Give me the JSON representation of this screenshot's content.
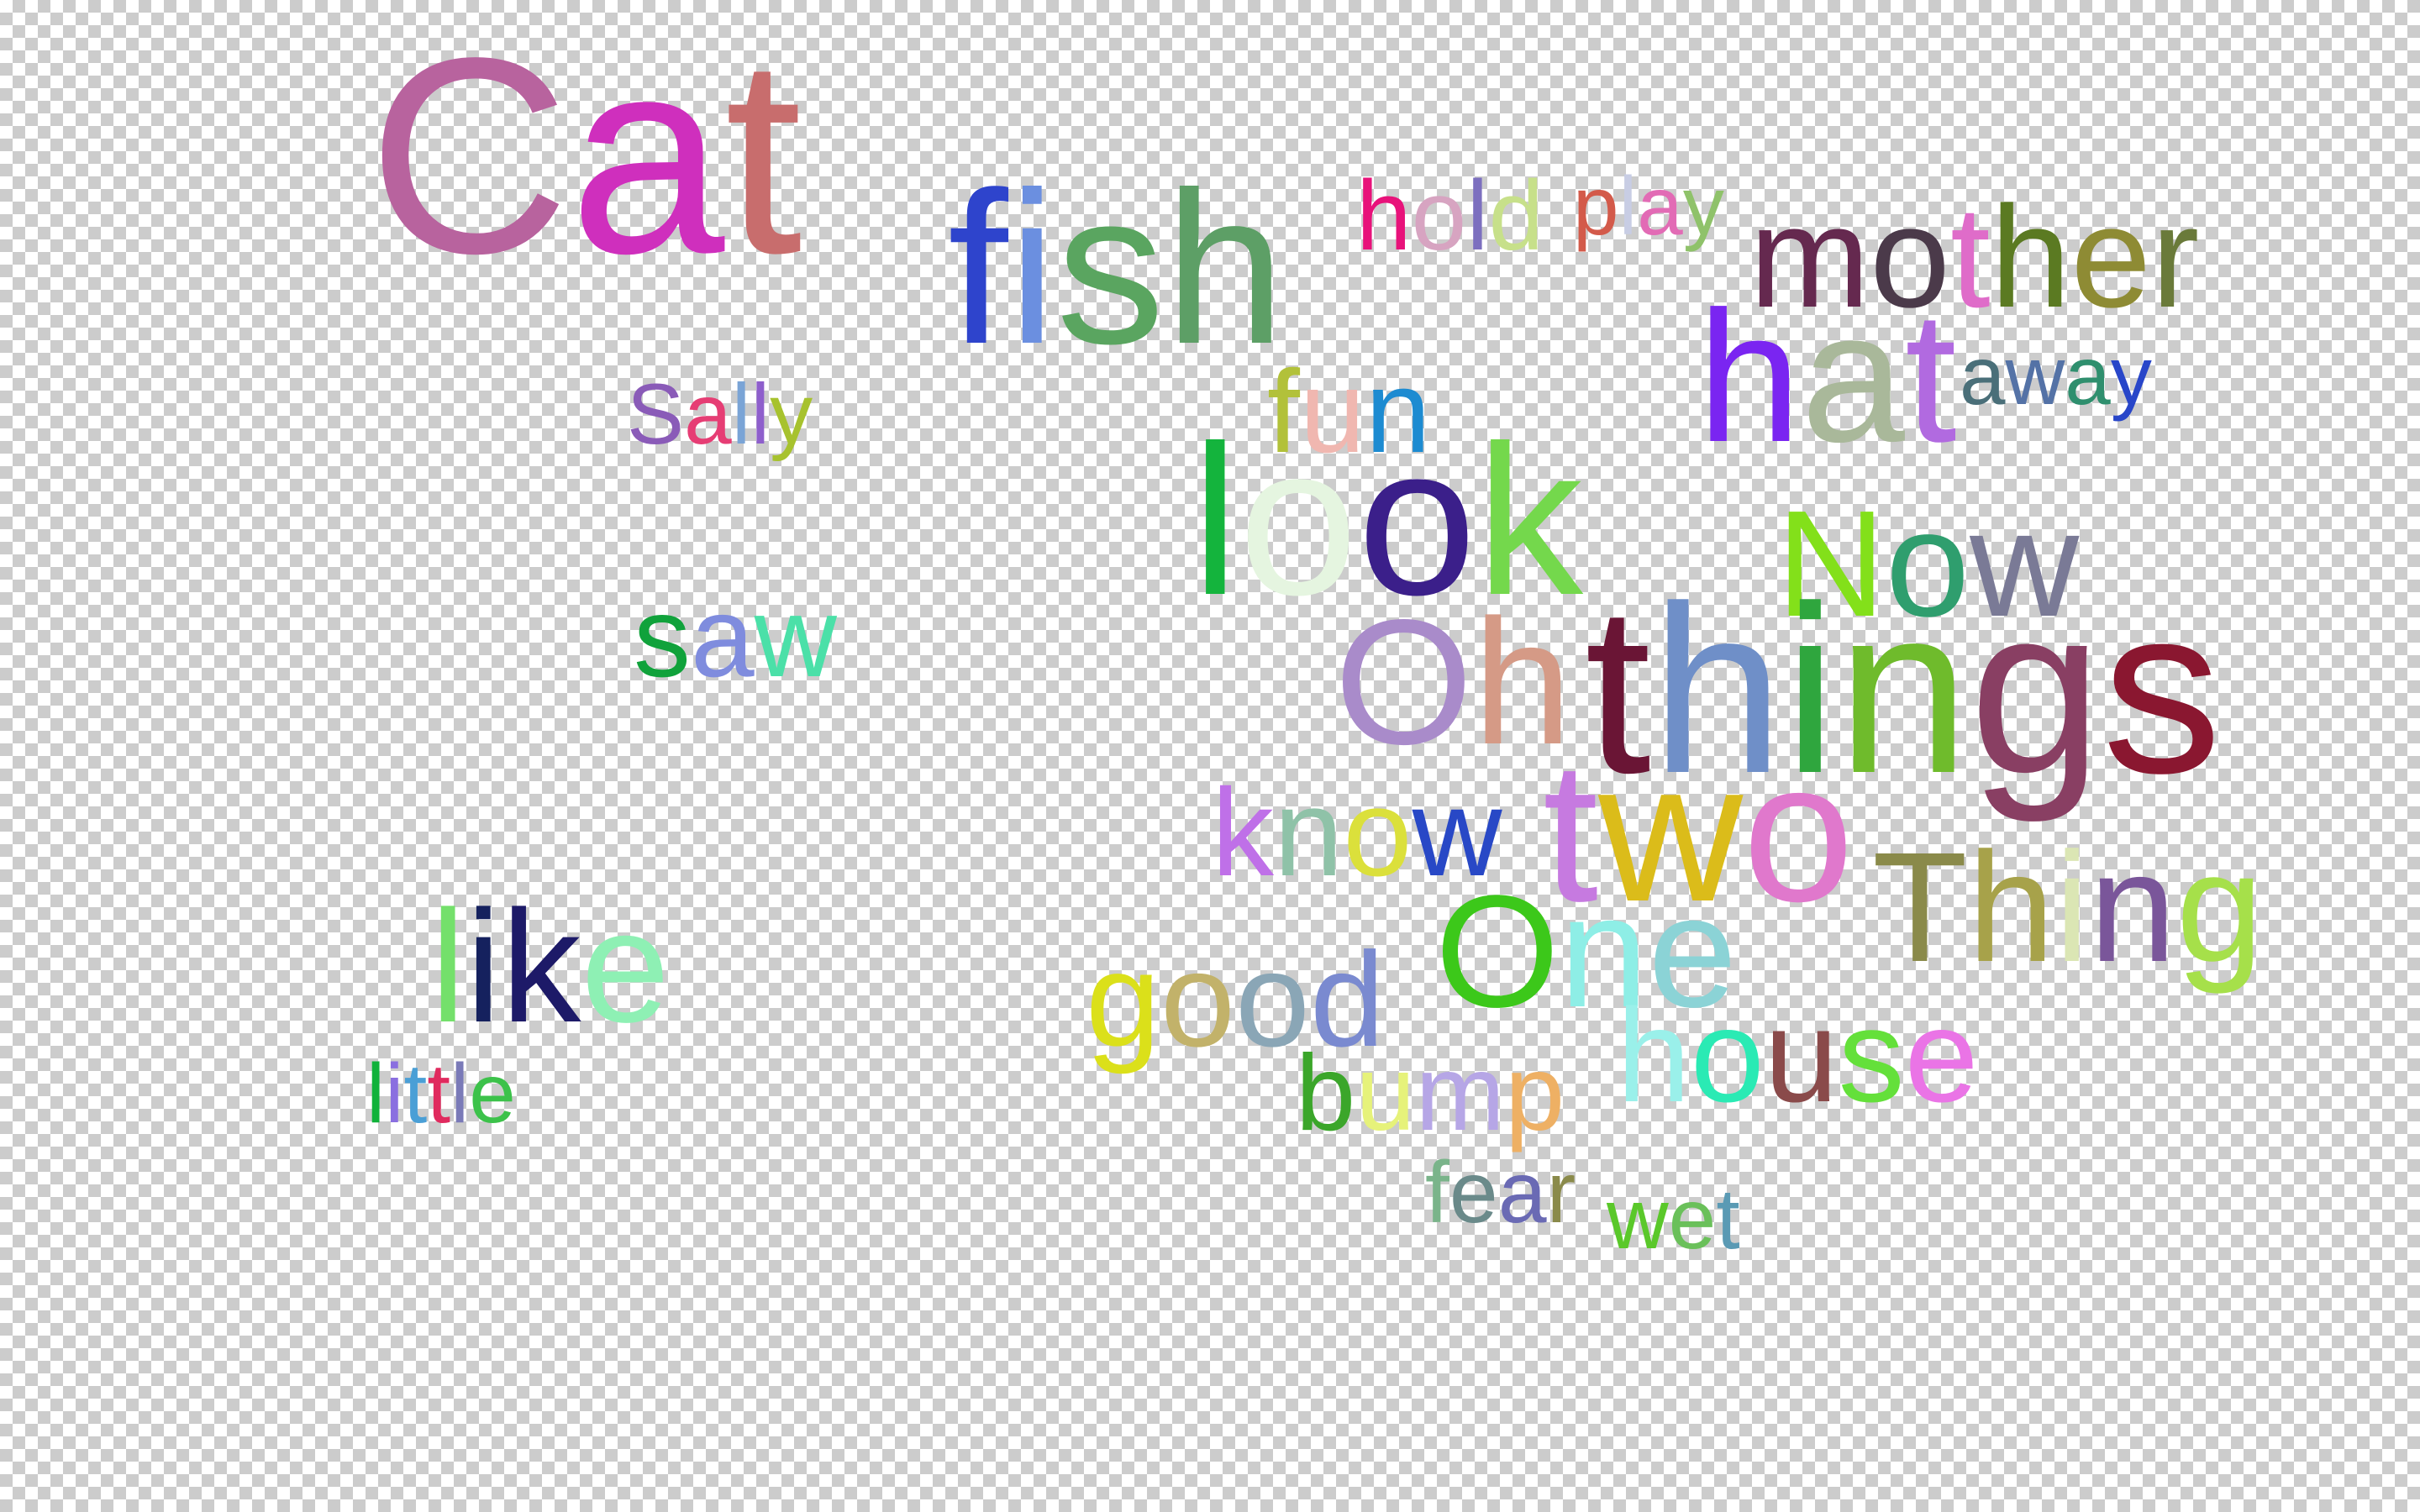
{
  "word_cloud": {
    "words": [
      {
        "text": "Cat",
        "colors": [
          "#b8639e",
          "#cf2fbd",
          "#c86d6d"
        ]
      },
      {
        "text": "fish",
        "colors": [
          "#2e44cc",
          "#6b8fe0",
          "#5aa560",
          "#5d9f66",
          "#7e5a92"
        ]
      },
      {
        "text": "hold",
        "colors": [
          "#e8127a",
          "#d7a4c1",
          "#7c6fbf",
          "#c7e08a"
        ]
      },
      {
        "text": "play",
        "colors": [
          "#d35a4a",
          "#c8cde4",
          "#e26bb5",
          "#8fc26a"
        ]
      },
      {
        "text": "mother",
        "colors": [
          "#65294f",
          "#4b3a4a",
          "#df6cc9",
          "#5b7a22",
          "#8e8b34",
          "#6a7a3a"
        ]
      },
      {
        "text": "hat",
        "colors": [
          "#7a25f1",
          "#a9b89a",
          "#b16ae0"
        ]
      },
      {
        "text": "away",
        "colors": [
          "#4a6f79",
          "#5472a6",
          "#2f8f6e",
          "#2846c9"
        ]
      },
      {
        "text": "Sally",
        "colors": [
          "#8a5bb8",
          "#e63d74",
          "#7aa4d6",
          "#8e5fcc",
          "#a7c22e"
        ]
      },
      {
        "text": "fun",
        "colors": [
          "#b2c13a",
          "#f0b7b0",
          "#1d8bd1"
        ]
      },
      {
        "text": "look",
        "colors": [
          "#14b43d",
          "#e5f5e0",
          "#3b1f8a",
          "#74d84c"
        ]
      },
      {
        "text": "Now",
        "colors": [
          "#83e01a",
          "#2f9e6e",
          "#7a7a96"
        ]
      },
      {
        "text": "saw",
        "colors": [
          "#10a23b",
          "#7f8cde",
          "#4be0a8"
        ]
      },
      {
        "text": "Oh",
        "colors": [
          "#a98bca",
          "#d59a86"
        ]
      },
      {
        "text": "things",
        "colors": [
          "#6a1535",
          "#6f8fc8",
          "#2fa63e",
          "#6fbb2c",
          "#893f63",
          "#8a1730"
        ]
      },
      {
        "text": "know",
        "colors": [
          "#bf70e8",
          "#8fc2a8",
          "#dbe03b",
          "#2848c6"
        ]
      },
      {
        "text": "two",
        "colors": [
          "#c67ae0",
          "#dbbc1a",
          "#e078cc"
        ]
      },
      {
        "text": "Thing",
        "colors": [
          "#8a8a4a",
          "#a7a24a",
          "#dbe6b4",
          "#7a569a",
          "#a6e04a",
          "#6b98c8"
        ]
      },
      {
        "text": "like",
        "colors": [
          "#74e06b",
          "#15215e",
          "#1d1a68",
          "#8ef0b4"
        ]
      },
      {
        "text": "One",
        "colors": [
          "#3cc81a",
          "#8eeee6",
          "#8bd3d6"
        ]
      },
      {
        "text": "good",
        "colors": [
          "#dbe01a",
          "#c2b26a",
          "#8aa6b6",
          "#7a8ad0"
        ]
      },
      {
        "text": "little",
        "colors": [
          "#10b23a",
          "#8a6fe0",
          "#4a9fd6",
          "#e02a5e",
          "#7a7ab8",
          "#3cc24a"
        ]
      },
      {
        "text": "house",
        "colors": [
          "#9af0ea",
          "#2aeab4",
          "#8a4a4a",
          "#64e03a",
          "#ea74e6"
        ]
      },
      {
        "text": "bump",
        "colors": [
          "#3ba62a",
          "#e6f27a",
          "#b6a6e6",
          "#eeb064"
        ]
      },
      {
        "text": "fear",
        "colors": [
          "#7ab48a",
          "#6a8a8a",
          "#6a6ab4",
          "#8a8a4a"
        ]
      },
      {
        "text": "wet",
        "colors": [
          "#5ac82a",
          "#6ac05a",
          "#5a9ab4"
        ]
      }
    ]
  }
}
